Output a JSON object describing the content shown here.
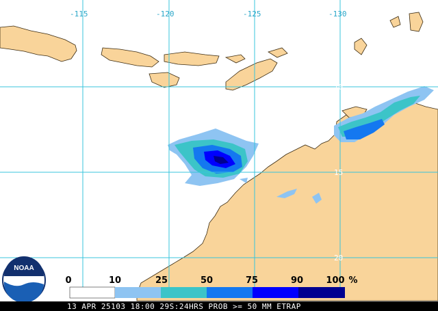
{
  "map": {
    "longitude_labels": [
      "-115",
      "-120",
      "-125",
      "-130"
    ],
    "latitude_labels": [
      "10",
      "15",
      "20"
    ],
    "colors": {
      "ocean": "#ffffff",
      "land": "#f9d49a",
      "grid": "#38c4dc",
      "coast": "#3a2a10"
    }
  },
  "legend": {
    "labels": [
      "0",
      "10",
      "25",
      "50",
      "75",
      "90",
      "100"
    ],
    "unit": "%",
    "colors": [
      "#ffffff",
      "#8ec4f2",
      "#3cc4c8",
      "#1478f0",
      "#0000ff",
      "#000090"
    ]
  },
  "logo": {
    "text": "NOAA",
    "colors": {
      "blue": "#1a5fb4",
      "dark": "#12306e",
      "white": "#ffffff"
    }
  },
  "footer": {
    "text": "13 APR 25103 18:00 29S:24HRS PROB >= 50 MM ETRAP",
    "background": "#000000"
  }
}
